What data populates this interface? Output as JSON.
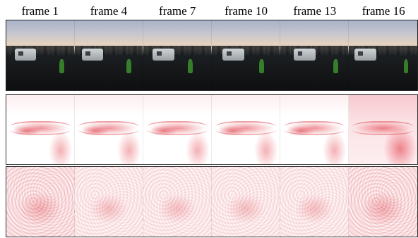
{
  "frame_labels": [
    "frame 1",
    "frame 4",
    "frame 7",
    "frame 10",
    "frame 13",
    "frame 16"
  ]
}
